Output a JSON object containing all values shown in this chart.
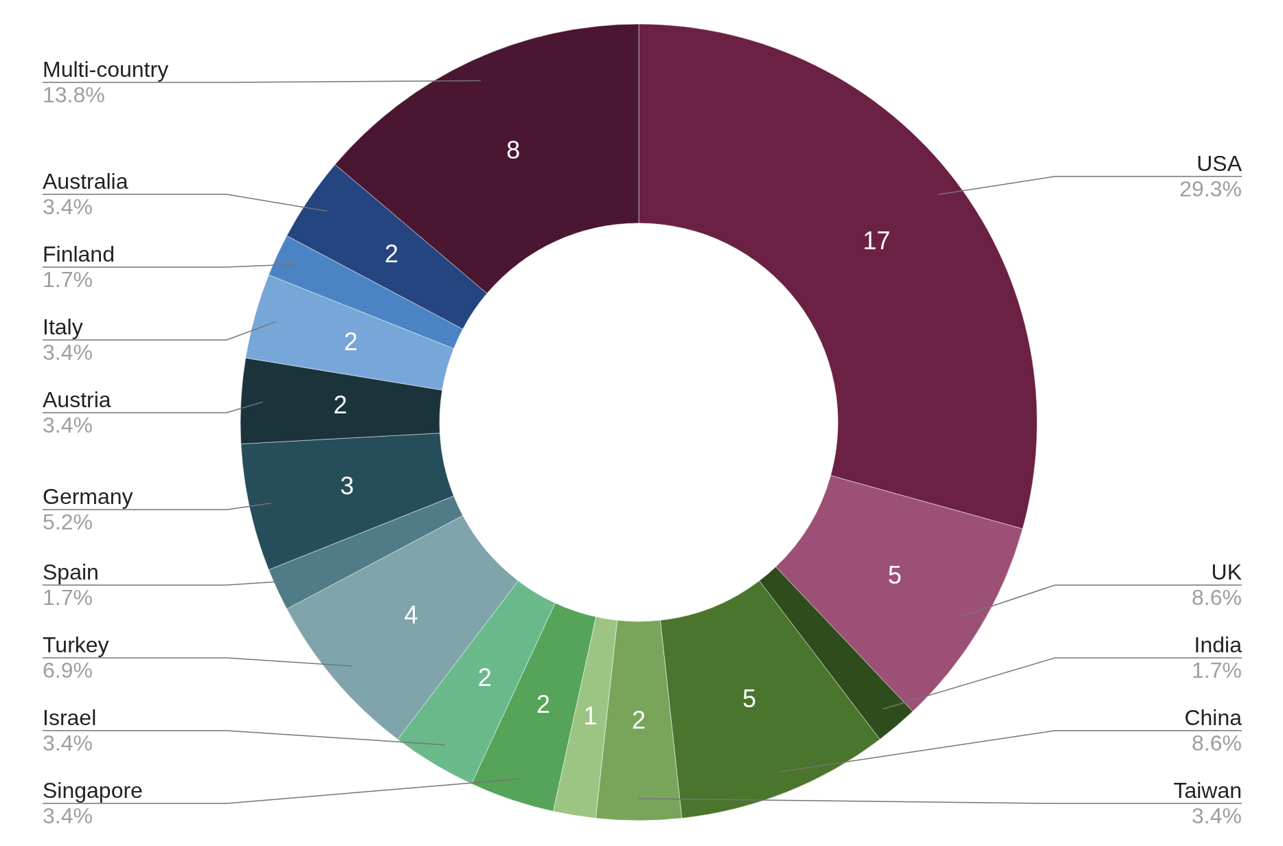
{
  "chart_data": {
    "type": "donut",
    "categories": [
      "USA",
      "UK",
      "India",
      "China",
      "Taiwan",
      null,
      "Singapore",
      "Israel",
      "Turkey",
      "Spain",
      "Germany",
      "Austria",
      "Italy",
      "Finland",
      "Australia",
      "Multi-country"
    ],
    "values": [
      17,
      5,
      1,
      5,
      2,
      1,
      2,
      2,
      4,
      1,
      3,
      2,
      2,
      1,
      2,
      8
    ],
    "colors": [
      "#6b2144",
      "#9c5076",
      "#2f4d1c",
      "#4a752c",
      "#78a55a",
      "#9cc584",
      "#56a35a",
      "#6ab98a",
      "#80a4ab",
      "#4f7c86",
      "#264e5a",
      "#1b333b",
      "#77a6d8",
      "#4b84c4",
      "#254580",
      "#4a1631"
    ],
    "value_labels": [
      "17",
      "5",
      null,
      "5",
      "2",
      "1",
      "2",
      "2",
      "4",
      null,
      "3",
      "2",
      "2",
      null,
      "2",
      "8"
    ],
    "annotations": [
      "29.3%",
      "8.6%",
      "1.7%",
      "8.6%",
      "3.4%",
      "3.4%",
      "3.4%",
      "6.9%",
      "1.7%",
      "5.2%",
      "3.4%",
      "3.4%",
      "1.7%",
      "3.4%",
      "13.8%"
    ]
  }
}
